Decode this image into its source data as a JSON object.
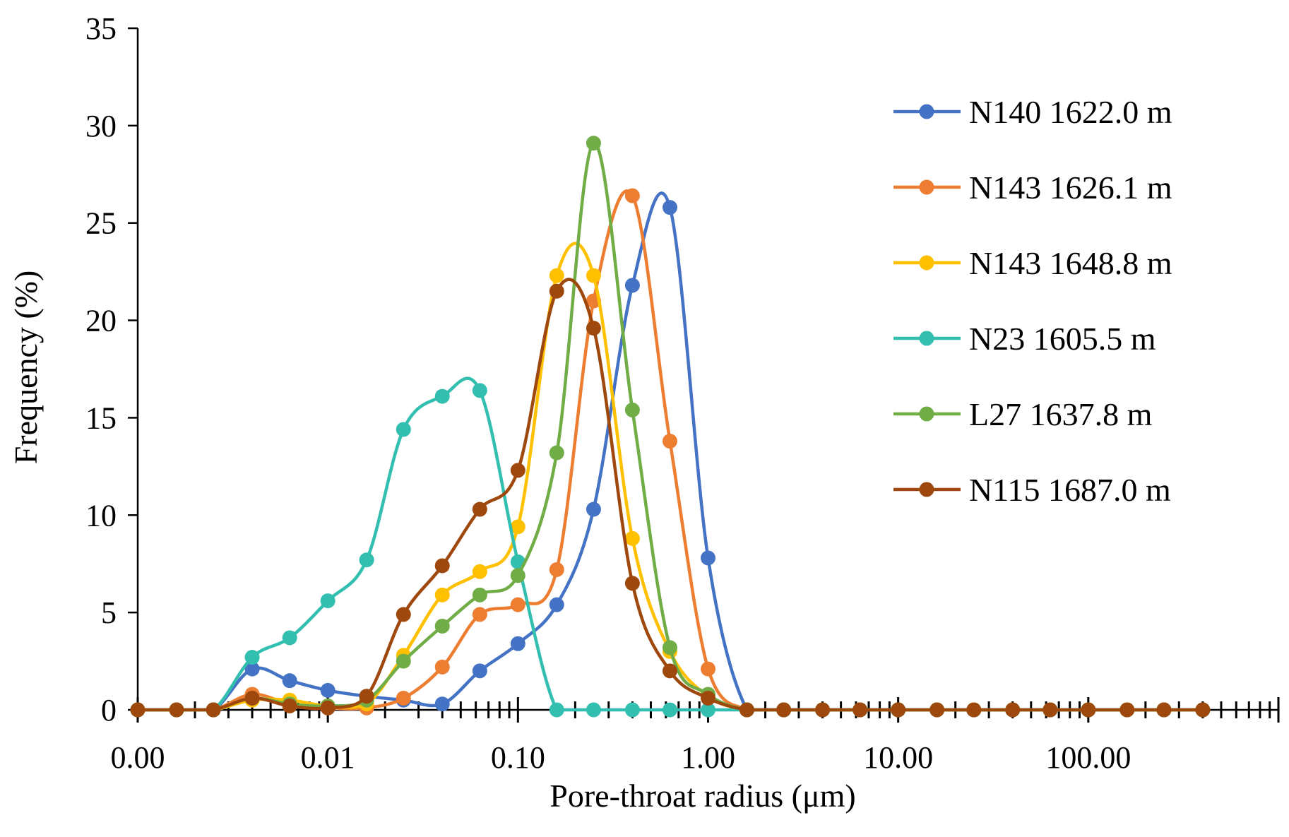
{
  "chart_data": {
    "type": "line",
    "title": "",
    "xlabel": "Pore-throat radius (μm)",
    "ylabel": "Frequency (%)",
    "x_scale": "log",
    "xlim": [
      0.001,
      1000
    ],
    "ylim": [
      0,
      35
    ],
    "y_ticks": [
      "0",
      "5",
      "10",
      "15",
      "20",
      "25",
      "30",
      "35"
    ],
    "x_tick_labels": [
      "0.00",
      "0.01",
      "0.10",
      "1.00",
      "10.00",
      "100.00"
    ],
    "legend_position": "right",
    "x": [
      0.001,
      0.0016,
      0.0025,
      0.004,
      0.0063,
      0.01,
      0.016,
      0.025,
      0.04,
      0.063,
      0.1,
      0.16,
      0.25,
      0.4,
      0.63,
      1.0,
      1.6,
      2.5,
      4.0,
      6.3,
      10,
      16,
      25,
      40,
      63,
      100,
      160,
      250,
      400
    ],
    "series": [
      {
        "name": "N140 1622.0 m",
        "color": "#4472C4",
        "values": [
          0,
          0,
          0,
          2.1,
          1.5,
          1.0,
          0.7,
          0.5,
          0.3,
          2.0,
          3.4,
          5.4,
          10.3,
          21.8,
          25.8,
          7.8,
          0,
          0,
          0,
          0,
          0,
          0,
          0,
          0,
          0,
          0,
          0,
          0,
          0
        ]
      },
      {
        "name": "N143 1626.1 m",
        "color": "#ED7D31",
        "values": [
          0,
          0,
          0,
          0.8,
          0.3,
          0.1,
          0.1,
          0.6,
          2.2,
          4.9,
          5.4,
          7.2,
          21.0,
          26.4,
          13.8,
          2.1,
          0,
          0,
          0,
          0,
          0,
          0,
          0,
          0,
          0,
          0,
          0,
          0,
          0
        ]
      },
      {
        "name": "N143 1648.8 m",
        "color": "#FFC000",
        "values": [
          0,
          0,
          0,
          0.5,
          0.5,
          0.2,
          0.3,
          2.8,
          5.9,
          7.1,
          9.4,
          22.3,
          22.3,
          8.8,
          3.0,
          0.7,
          0,
          0,
          0,
          0,
          0,
          0,
          0,
          0,
          0,
          0,
          0,
          0,
          0
        ]
      },
      {
        "name": "N23 1605.5 m",
        "color": "#33BFB0",
        "values": [
          0,
          0,
          0,
          2.7,
          3.7,
          5.6,
          7.7,
          14.4,
          16.1,
          16.4,
          7.6,
          0,
          0,
          0,
          0,
          0,
          0,
          0,
          0,
          0,
          0,
          0,
          0,
          0,
          0,
          0,
          0,
          0,
          0
        ]
      },
      {
        "name": "L27 1637.8 m",
        "color": "#70AD47",
        "values": [
          0,
          0,
          0,
          0.6,
          0.3,
          0.2,
          0.5,
          2.5,
          4.3,
          5.9,
          6.9,
          13.2,
          29.1,
          15.4,
          3.2,
          0.8,
          0,
          0,
          0,
          0,
          0,
          0,
          0,
          0,
          0,
          0,
          0,
          0,
          0
        ]
      },
      {
        "name": "N115 1687.0 m",
        "color": "#9E480E",
        "values": [
          0,
          0,
          0,
          0.6,
          0.2,
          0.1,
          0.7,
          4.9,
          7.4,
          10.3,
          12.3,
          21.5,
          19.6,
          6.5,
          2.0,
          0.6,
          0,
          0,
          0,
          0,
          0,
          0,
          0,
          0,
          0,
          0,
          0,
          0,
          0
        ]
      }
    ]
  }
}
